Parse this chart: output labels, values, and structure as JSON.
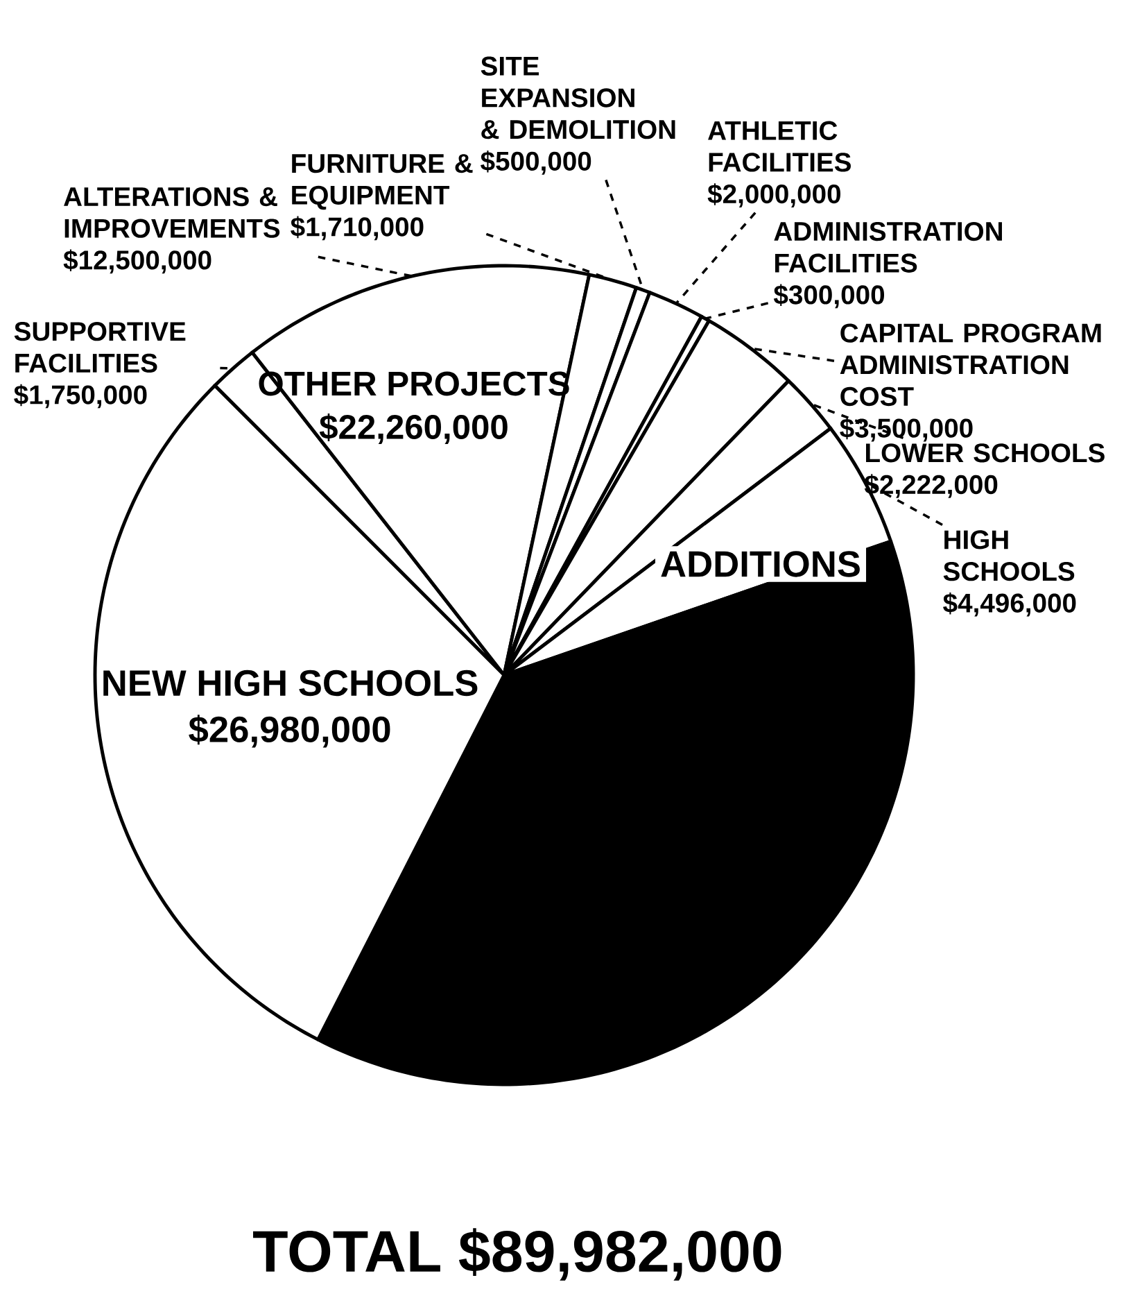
{
  "chart_data": {
    "type": "pie",
    "categories": [
      "SUPPORTIVE FACILITIES",
      "ALTERATIONS & IMPROVEMENTS",
      "FURNITURE & EQUIPMENT",
      "SITE EXPANSION & DEMOLITION",
      "ATHLETIC FACILITIES",
      "ADMINISTRATION FACILITIES",
      "CAPITAL PROGRAM ADMINISTRATION COST",
      "LOWER SCHOOLS",
      "HIGH SCHOOLS",
      null,
      "NEW HIGH SCHOOLS"
    ],
    "values": [
      1750000,
      12500000,
      1710000,
      500000,
      2000000,
      300000,
      3500000,
      2222000,
      4496000,
      34024000,
      26980000
    ],
    "value_labels": [
      "$1,750,000",
      "$12,500,000",
      "$1,710,000",
      "$500,000",
      "$2,000,000",
      "$300,000",
      "$3,500,000",
      "$2,222,000",
      "$4,496,000",
      null,
      "$26,980,000"
    ],
    "colors": [
      "#ffffff",
      "#ffffff",
      "#ffffff",
      "#ffffff",
      "#ffffff",
      "#ffffff",
      "#ffffff",
      "#ffffff",
      "#ffffff",
      "#000000",
      "#ffffff"
    ],
    "annotations": [
      "OTHER PROJECTS",
      "$22,260,000",
      "ADDITIONS",
      "TOTAL $89,982,000"
    ]
  }
}
